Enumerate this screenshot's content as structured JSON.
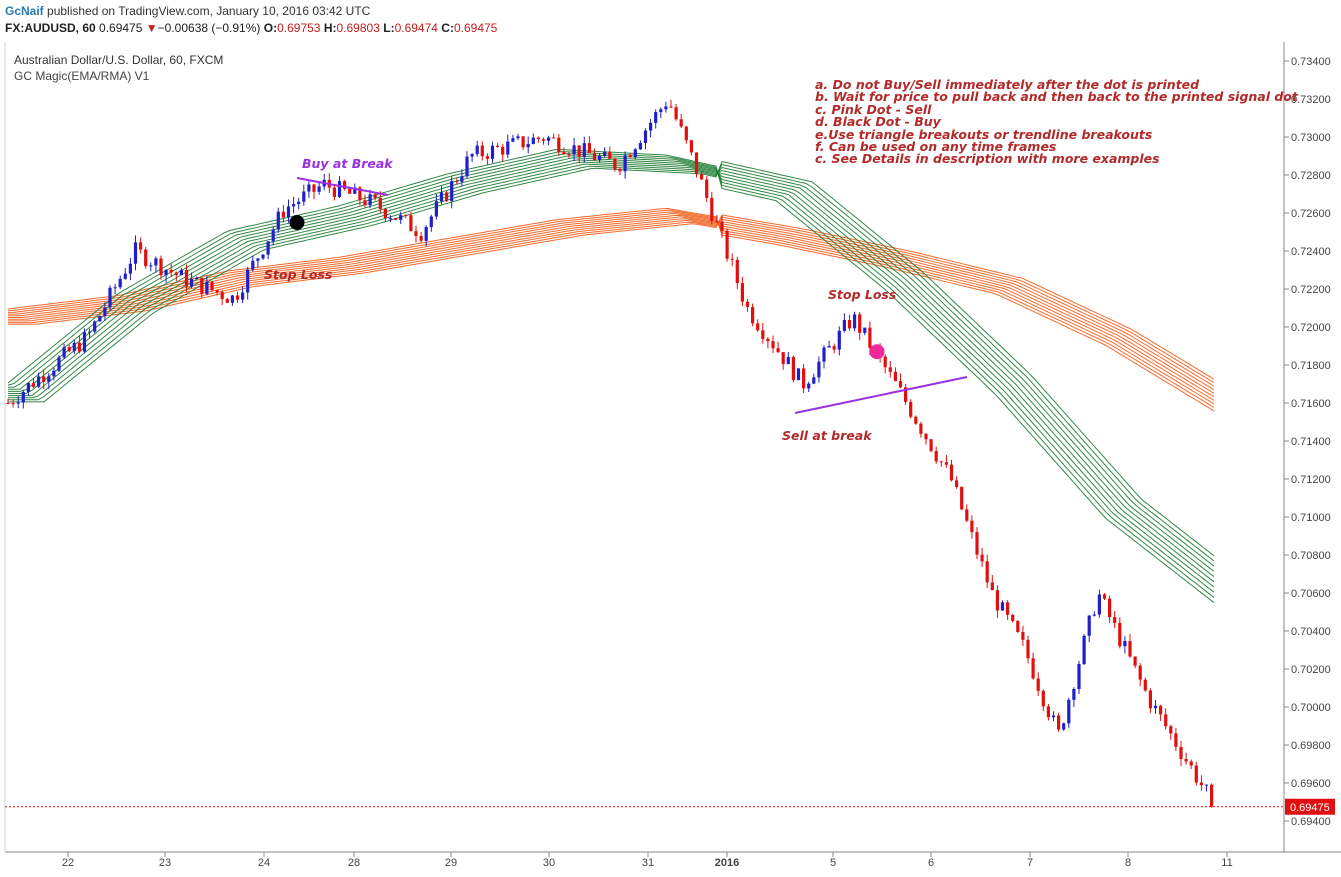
{
  "header": {
    "author": "GcNaif",
    "published_text": "published on TradingView.com, January 10, 2016 03:42 UTC",
    "symbol": "FX:AUDUSD, 60",
    "last_price": "0.69475",
    "change_arrow": "▼",
    "change": "−0.00638 (−0.91%)",
    "open_label": "O:",
    "open": "0.69753",
    "high_label": "H:",
    "high": "0.69803",
    "low_label": "L:",
    "low": "0.69474",
    "close_label": "C:",
    "close": "0.69475"
  },
  "legend": {
    "title": "Australian Dollar/U.S. Dollar, 60, FXCM",
    "indicator": "GC Magic(EMA/RMA) V1"
  },
  "notes": [
    "a. Do not Buy/Sell immediately after the dot is printed",
    "b. Wait for price to pull back and then back to the printed signal dot",
    "c. Pink Dot - Sell",
    "d. Black Dot - Buy",
    "e.Use triangle breakouts or trendline breakouts",
    "f. Can be used on any time frames",
    "c. See Details in description with more examples"
  ],
  "annotations": {
    "buy_label": "Buy at Break",
    "stop_loss_1": "Stop Loss",
    "stop_loss_2": "Stop Loss",
    "sell_label": "Sell at break"
  },
  "colors": {
    "up_candle": "#2020c8",
    "down_candle": "#e01010",
    "green_ribbon": "#1a7a2e",
    "orange_ribbon": "#f05a14",
    "trendline": "#9b30e0",
    "buy_dot": "#000000",
    "sell_dot": "#f0289a",
    "note_text": "#b32a2a"
  },
  "chart_data": {
    "type": "candlestick",
    "title": "Australian Dollar/U.S. Dollar, 60, FXCM",
    "x_ticks": [
      "22",
      "23",
      "24",
      "28",
      "29",
      "30",
      "31",
      "2016",
      "5",
      "6",
      "7",
      "8",
      "11"
    ],
    "y_ticks": [
      "0.73400",
      "0.73200",
      "0.73000",
      "0.72800",
      "0.72600",
      "0.72400",
      "0.72200",
      "0.72000",
      "0.71800",
      "0.71600",
      "0.71400",
      "0.71200",
      "0.71000",
      "0.70800",
      "0.70600",
      "0.70400",
      "0.70200",
      "0.70000",
      "0.69800",
      "0.69600",
      "0.69400"
    ],
    "ylim": [
      0.6935,
      0.735
    ],
    "last_price_label": "0.69475",
    "last_price": 0.69475,
    "price_path": [
      {
        "x": "22",
        "price": 0.716
      },
      {
        "x": "22",
        "price": 0.7195
      },
      {
        "x": "23",
        "price": 0.724
      },
      {
        "x": "23",
        "price": 0.7225
      },
      {
        "x": "24",
        "price": 0.7215
      },
      {
        "x": "24",
        "price": 0.7262
      },
      {
        "x": "28",
        "price": 0.7275
      },
      {
        "x": "28",
        "price": 0.7265
      },
      {
        "x": "29",
        "price": 0.725
      },
      {
        "x": "29",
        "price": 0.729
      },
      {
        "x": "30",
        "price": 0.73
      },
      {
        "x": "31",
        "price": 0.7285
      },
      {
        "x": "31",
        "price": 0.732
      },
      {
        "x": "2016",
        "price": 0.7282
      },
      {
        "x": "2016",
        "price": 0.721
      },
      {
        "x": "5",
        "price": 0.717
      },
      {
        "x": "5",
        "price": 0.7205
      },
      {
        "x": "6",
        "price": 0.7165
      },
      {
        "x": "6",
        "price": 0.712
      },
      {
        "x": "7",
        "price": 0.706
      },
      {
        "x": "7",
        "price": 0.703
      },
      {
        "x": "7",
        "price": 0.6985
      },
      {
        "x": "8",
        "price": 0.706
      },
      {
        "x": "8",
        "price": 0.7005
      },
      {
        "x": "11",
        "price": 0.69475
      }
    ],
    "series": [
      {
        "name": "green ribbon (fast EMAs)",
        "values": [
          0.7165,
          0.7212,
          0.7245,
          0.7258,
          0.7275,
          0.7288,
          0.7285,
          0.7272,
          0.7225,
          0.717,
          0.7105,
          0.706
        ]
      },
      {
        "name": "orange ribbon (slow RMAs)",
        "values": [
          0.7205,
          0.7212,
          0.7225,
          0.7232,
          0.7242,
          0.7252,
          0.7258,
          0.7248,
          0.7236,
          0.7222,
          0.7195,
          0.716
        ]
      }
    ],
    "signals": [
      {
        "type": "buy",
        "x": "24",
        "price": 0.7255
      },
      {
        "type": "sell",
        "x": "5",
        "price": 0.7187
      }
    ],
    "grid": false
  }
}
